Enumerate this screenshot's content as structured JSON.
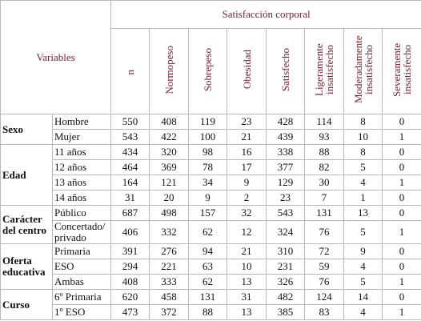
{
  "table": {
    "header": {
      "variables": "Variables",
      "group": "Satisfacción corporal"
    },
    "columns": [
      "n",
      "Normopeso",
      "Sobrepeso",
      "Obesidad",
      "Satisfecho",
      "Ligeramente insatisfecho",
      "Moderadamente insatisfecho",
      "Severamente insatisfecho"
    ],
    "groups": [
      {
        "label": "Sexo",
        "rows": [
          {
            "label": "Hombre",
            "values": [
              550,
              408,
              119,
              23,
              428,
              114,
              8,
              0
            ]
          },
          {
            "label": "Mujer",
            "values": [
              543,
              422,
              100,
              21,
              439,
              93,
              10,
              1
            ]
          }
        ]
      },
      {
        "label": "Edad",
        "rows": [
          {
            "label": "11 años",
            "values": [
              434,
              320,
              98,
              16,
              338,
              88,
              8,
              0
            ]
          },
          {
            "label": "12 años",
            "values": [
              464,
              369,
              78,
              17,
              377,
              82,
              5,
              0
            ]
          },
          {
            "label": "13 años",
            "values": [
              164,
              121,
              34,
              9,
              129,
              30,
              4,
              1
            ]
          },
          {
            "label": "14 años",
            "values": [
              31,
              20,
              9,
              2,
              23,
              7,
              1,
              0
            ]
          }
        ]
      },
      {
        "label": "Carácter del centro",
        "rows": [
          {
            "label": "Público",
            "values": [
              687,
              498,
              157,
              32,
              543,
              131,
              13,
              0
            ]
          },
          {
            "label": "Concertado/ privado",
            "values": [
              406,
              332,
              62,
              12,
              324,
              76,
              5,
              1
            ]
          }
        ]
      },
      {
        "label": "Oferta educativa",
        "rows": [
          {
            "label": "Primaria",
            "values": [
              391,
              276,
              94,
              21,
              310,
              72,
              9,
              0
            ]
          },
          {
            "label": "ESO",
            "values": [
              294,
              221,
              63,
              10,
              231,
              59,
              4,
              0
            ]
          },
          {
            "label": "Ambas",
            "values": [
              408,
              333,
              62,
              13,
              326,
              76,
              5,
              1
            ]
          }
        ]
      },
      {
        "label": "Curso",
        "rows": [
          {
            "label": "6º Primaria",
            "values": [
              620,
              458,
              131,
              31,
              482,
              124,
              14,
              0
            ]
          },
          {
            "label": "1º ESO",
            "values": [
              473,
              372,
              88,
              13,
              385,
              83,
              4,
              1
            ]
          }
        ]
      }
    ]
  }
}
